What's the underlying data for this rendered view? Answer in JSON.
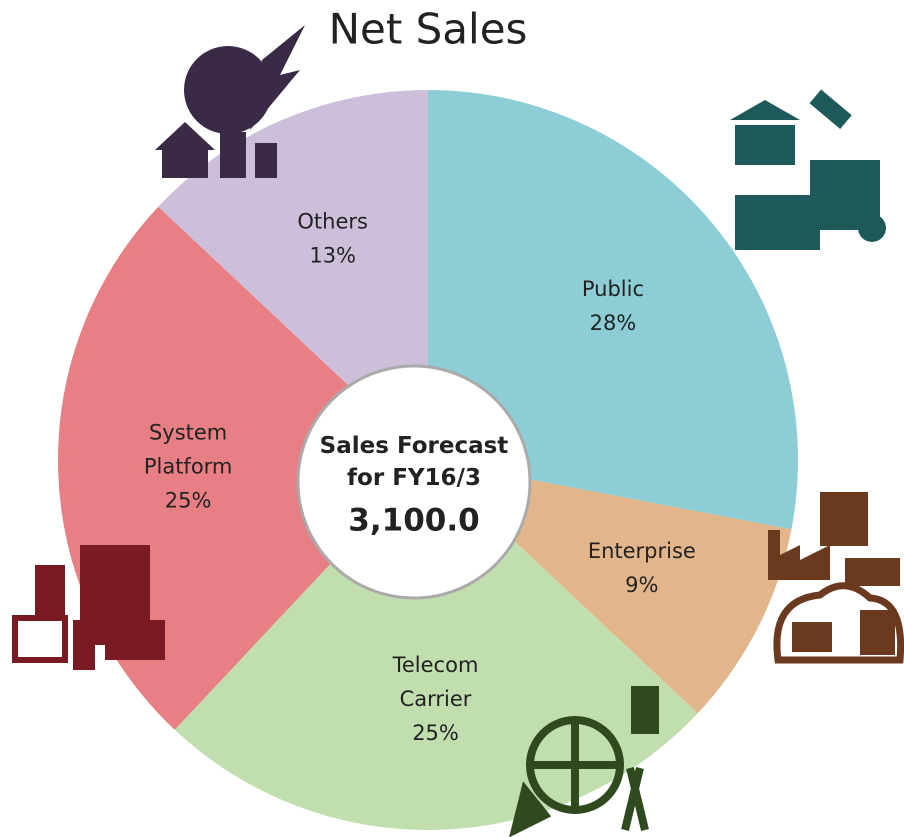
{
  "chart_data": {
    "type": "pie",
    "title": "Net Sales",
    "categories": [
      "Public",
      "Enterprise",
      "Telecom Carrier",
      "System Platform",
      "Others"
    ],
    "values": [
      28,
      9,
      25,
      25,
      13
    ],
    "value_labels": [
      "28%",
      "9%",
      "25%",
      "25%",
      "13%"
    ],
    "colors": [
      "#8ccdd6",
      "#e3b58a",
      "#c1deaf",
      "#e87f85",
      "#cdbfd9"
    ],
    "center_title": "Sales Forecast for FY16/3",
    "center_value": "3,100.0"
  }
}
